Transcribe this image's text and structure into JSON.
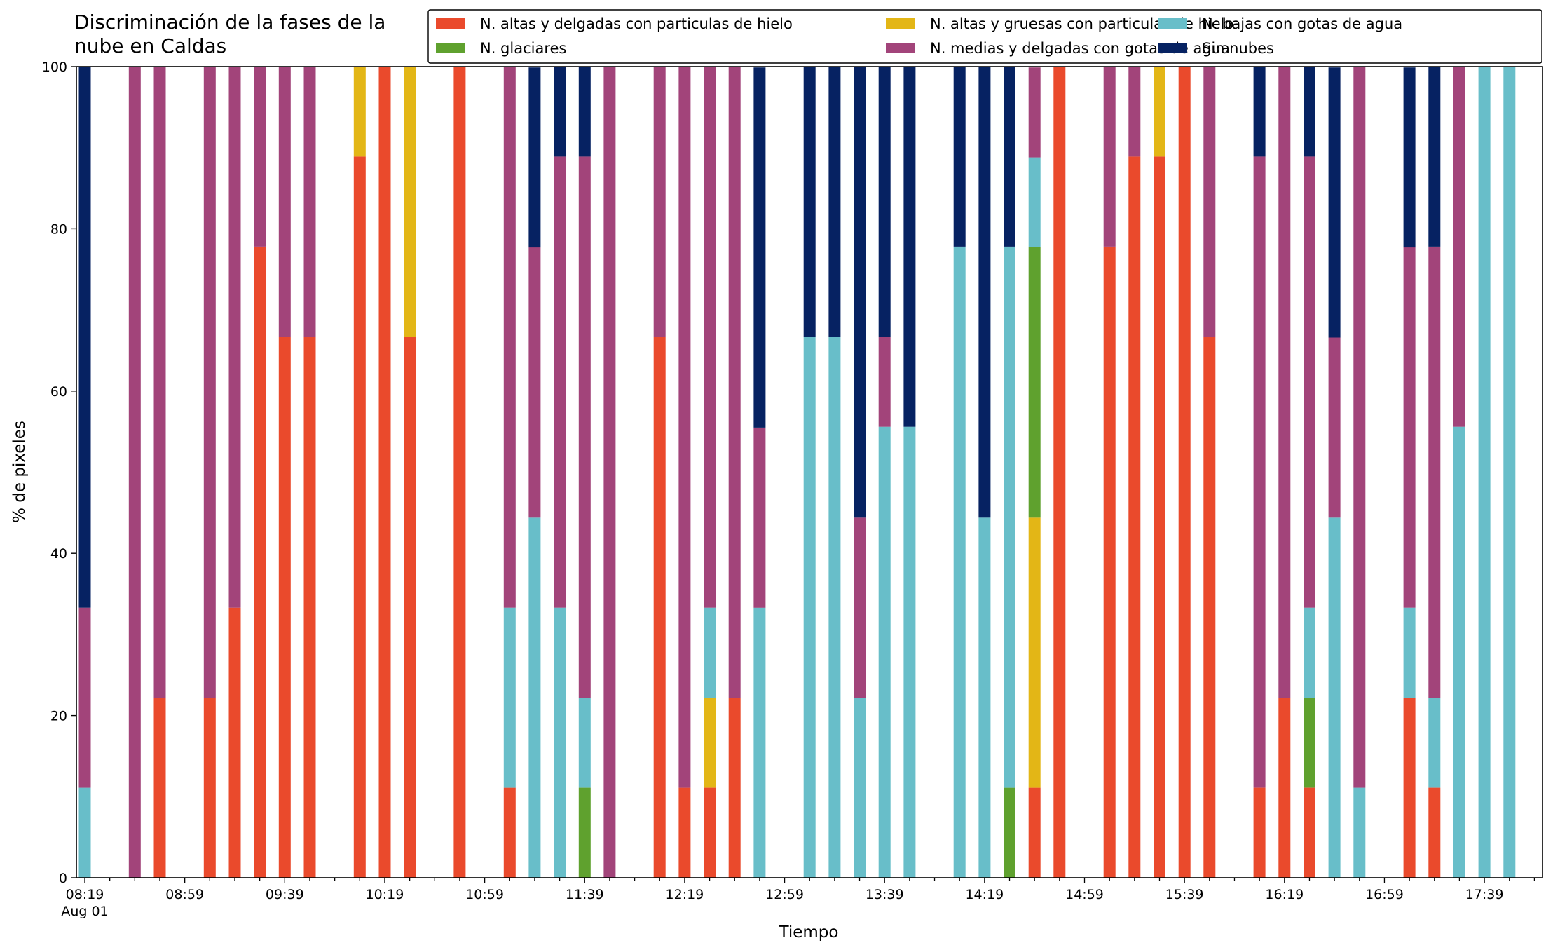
{
  "chart_data": {
    "type": "bar",
    "stacked": true,
    "title": "Discriminación de la fases de la nube en Caldas",
    "title_lines": [
      "Discriminación de la fases de la",
      "nube en Caldas"
    ],
    "xlabel": "Tiempo",
    "ylabel": "% de pixeles",
    "ylim": [
      0,
      100
    ],
    "yticks": [
      0,
      20,
      40,
      60,
      80,
      100
    ],
    "x_start": "08:19",
    "x_end": "18:00",
    "x_step_minutes": 10,
    "x_tick_labels": [
      {
        "time": "08:19",
        "text": "08:19",
        "sub": "Aug 01"
      },
      {
        "time": "08:59",
        "text": "08:59"
      },
      {
        "time": "09:39",
        "text": "09:39"
      },
      {
        "time": "10:19",
        "text": "10:19"
      },
      {
        "time": "10:59",
        "text": "10:59"
      },
      {
        "time": "11:39",
        "text": "11:39"
      },
      {
        "time": "12:19",
        "text": "12:19"
      },
      {
        "time": "12:59",
        "text": "12:59"
      },
      {
        "time": "13:39",
        "text": "13:39"
      },
      {
        "time": "14:19",
        "text": "14:19"
      },
      {
        "time": "14:59",
        "text": "14:59"
      },
      {
        "time": "15:39",
        "text": "15:39"
      },
      {
        "time": "16:19",
        "text": "16:19"
      },
      {
        "time": "16:59",
        "text": "16:59"
      },
      {
        "time": "17:39",
        "text": "17:39"
      }
    ],
    "legend_position": "top-right",
    "grid": false,
    "series": [
      {
        "name": "N. altas y delgadas con particulas de hielo",
        "color": "#ea4a2c"
      },
      {
        "name": "N. altas y gruesas con particulas de hielo",
        "color": "#e3b616"
      },
      {
        "name": "N. bajas con gotas de agua",
        "color": "#68bec9"
      },
      {
        "name": "N. glaciares",
        "color": "#5fa12e"
      },
      {
        "name": "N. medias y delgadas con gotas de agua",
        "color": "#a2447a"
      },
      {
        "name": "Sin nubes",
        "color": "#062262"
      }
    ],
    "stack_order": [
      0,
      1,
      3,
      2,
      4,
      5
    ],
    "bars": [
      {
        "time": "08:19",
        "values": [
          0,
          0,
          11.1,
          0,
          22.2,
          66.7
        ]
      },
      {
        "time": "08:39",
        "values": [
          0,
          0,
          0,
          0,
          100,
          0
        ]
      },
      {
        "time": "08:49",
        "values": [
          22.2,
          0,
          0,
          0,
          77.8,
          0
        ]
      },
      {
        "time": "09:09",
        "values": [
          22.2,
          0,
          0,
          0,
          77.8,
          0
        ]
      },
      {
        "time": "09:19",
        "values": [
          33.3,
          0,
          0,
          0,
          66.7,
          0
        ]
      },
      {
        "time": "09:29",
        "values": [
          77.8,
          0,
          0,
          0,
          22.2,
          0
        ]
      },
      {
        "time": "09:39",
        "values": [
          66.7,
          0,
          0,
          0,
          33.3,
          0
        ]
      },
      {
        "time": "09:49",
        "values": [
          66.7,
          0,
          0,
          0,
          33.3,
          0
        ]
      },
      {
        "time": "10:09",
        "values": [
          88.9,
          11.1,
          0,
          0,
          0,
          0
        ]
      },
      {
        "time": "10:19",
        "values": [
          100,
          0,
          0,
          0,
          0,
          0
        ]
      },
      {
        "time": "10:29",
        "values": [
          66.7,
          33.3,
          0,
          0,
          0,
          0
        ]
      },
      {
        "time": "10:49",
        "values": [
          100,
          0,
          0,
          0,
          0,
          0
        ]
      },
      {
        "time": "11:09",
        "values": [
          11.1,
          0,
          22.2,
          0,
          66.7,
          0
        ]
      },
      {
        "time": "11:19",
        "values": [
          0,
          0,
          44.4,
          0,
          33.3,
          22.2
        ]
      },
      {
        "time": "11:29",
        "values": [
          0,
          0,
          33.3,
          0,
          55.6,
          11.1
        ]
      },
      {
        "time": "11:39",
        "values": [
          0,
          0,
          11.1,
          11.1,
          66.7,
          11.1
        ]
      },
      {
        "time": "11:49",
        "values": [
          0,
          0,
          0,
          0,
          100,
          0
        ]
      },
      {
        "time": "12:09",
        "values": [
          66.7,
          0,
          0,
          0,
          33.3,
          0
        ]
      },
      {
        "time": "12:19",
        "values": [
          11.1,
          0,
          0,
          0,
          88.9,
          0
        ]
      },
      {
        "time": "12:29",
        "values": [
          11.1,
          11.1,
          11.1,
          0,
          66.7,
          0
        ]
      },
      {
        "time": "12:39",
        "values": [
          22.2,
          0,
          0,
          0,
          77.8,
          0
        ]
      },
      {
        "time": "12:49",
        "values": [
          0,
          0,
          33.3,
          0,
          22.2,
          44.4
        ]
      },
      {
        "time": "13:09",
        "values": [
          0,
          0,
          66.7,
          0,
          0,
          33.3
        ]
      },
      {
        "time": "13:19",
        "values": [
          0,
          0,
          66.7,
          0,
          0,
          33.3
        ]
      },
      {
        "time": "13:29",
        "values": [
          0,
          0,
          22.2,
          0,
          22.2,
          55.6
        ]
      },
      {
        "time": "13:39",
        "values": [
          0,
          0,
          55.6,
          0,
          11.1,
          33.3
        ]
      },
      {
        "time": "13:49",
        "values": [
          0,
          0,
          55.6,
          0,
          0,
          44.4
        ]
      },
      {
        "time": "14:09",
        "values": [
          0,
          0,
          77.8,
          0,
          0,
          22.2
        ]
      },
      {
        "time": "14:19",
        "values": [
          0,
          0,
          44.4,
          0,
          0,
          55.6
        ]
      },
      {
        "time": "14:29",
        "values": [
          0,
          0,
          66.7,
          11.1,
          0,
          22.2
        ]
      },
      {
        "time": "14:39",
        "values": [
          11.1,
          33.3,
          11.1,
          33.3,
          11.1,
          0
        ]
      },
      {
        "time": "14:49",
        "values": [
          100,
          0,
          0,
          0,
          0,
          0
        ]
      },
      {
        "time": "15:09",
        "values": [
          77.8,
          0,
          0,
          0,
          22.2,
          0
        ]
      },
      {
        "time": "15:19",
        "values": [
          88.9,
          0,
          0,
          0,
          11.1,
          0
        ]
      },
      {
        "time": "15:29",
        "values": [
          88.9,
          11.1,
          0,
          0,
          0,
          0
        ]
      },
      {
        "time": "15:39",
        "values": [
          100,
          0,
          0,
          0,
          0,
          0
        ]
      },
      {
        "time": "15:49",
        "values": [
          66.7,
          0,
          0,
          0,
          33.3,
          0
        ]
      },
      {
        "time": "16:09",
        "values": [
          11.1,
          0,
          0,
          0,
          77.8,
          11.1
        ]
      },
      {
        "time": "16:19",
        "values": [
          22.2,
          0,
          0,
          0,
          77.8,
          0
        ]
      },
      {
        "time": "16:29",
        "values": [
          11.1,
          0,
          11.1,
          11.1,
          55.6,
          11.1
        ]
      },
      {
        "time": "16:39",
        "values": [
          0,
          0,
          44.4,
          0,
          22.2,
          33.3
        ]
      },
      {
        "time": "16:49",
        "values": [
          0,
          0,
          11.1,
          0,
          88.9,
          0
        ]
      },
      {
        "time": "17:09",
        "values": [
          22.2,
          0,
          11.1,
          0,
          44.4,
          22.2
        ]
      },
      {
        "time": "17:19",
        "values": [
          11.1,
          0,
          11.1,
          0,
          55.6,
          22.2
        ]
      },
      {
        "time": "17:29",
        "values": [
          0,
          0,
          55.6,
          0,
          44.4,
          0
        ]
      },
      {
        "time": "17:39",
        "values": [
          0,
          0,
          100,
          0,
          0,
          0
        ]
      },
      {
        "time": "17:49",
        "values": [
          0,
          0,
          100,
          0,
          0,
          0
        ]
      }
    ]
  }
}
